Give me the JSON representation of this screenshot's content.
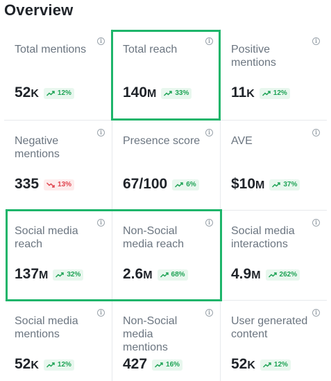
{
  "title": "Overview",
  "tiles": [
    {
      "label": "Total mentions",
      "value": "52",
      "unit": "K",
      "change": "12%",
      "trend": "up"
    },
    {
      "label": "Total reach",
      "value": "140",
      "unit": "M",
      "change": "33%",
      "trend": "up"
    },
    {
      "label": "Positive mentions",
      "value": "11",
      "unit": "K",
      "change": "12%",
      "trend": "up"
    },
    {
      "label": "Negative mentions",
      "value": "335",
      "unit": "",
      "change": "13%",
      "trend": "down"
    },
    {
      "label": "Presence score",
      "value": "67/100",
      "unit": "",
      "change": "6%",
      "trend": "up"
    },
    {
      "label": "AVE",
      "value": "$10",
      "unit": "M",
      "change": "37%",
      "trend": "up"
    },
    {
      "label": "Social media reach",
      "value": "137",
      "unit": "M",
      "change": "32%",
      "trend": "up"
    },
    {
      "label": "Non-Social media reach",
      "value": "2.6",
      "unit": "M",
      "change": "68%",
      "trend": "up"
    },
    {
      "label": "Social media interactions",
      "value": "4.9",
      "unit": "M",
      "change": "262%",
      "trend": "up"
    },
    {
      "label": "Social media mentions",
      "value": "52",
      "unit": "K",
      "change": "12%",
      "trend": "up"
    },
    {
      "label": "Non-Social media mentions",
      "value": "427",
      "unit": "",
      "change": "16%",
      "trend": "up"
    },
    {
      "label": "User generated content",
      "value": "52",
      "unit": "K",
      "change": "12%",
      "trend": "up"
    }
  ],
  "info_glyph": "i",
  "colors": {
    "up": "#1fa356",
    "down": "#e0454f",
    "highlight": "#1db56a"
  }
}
